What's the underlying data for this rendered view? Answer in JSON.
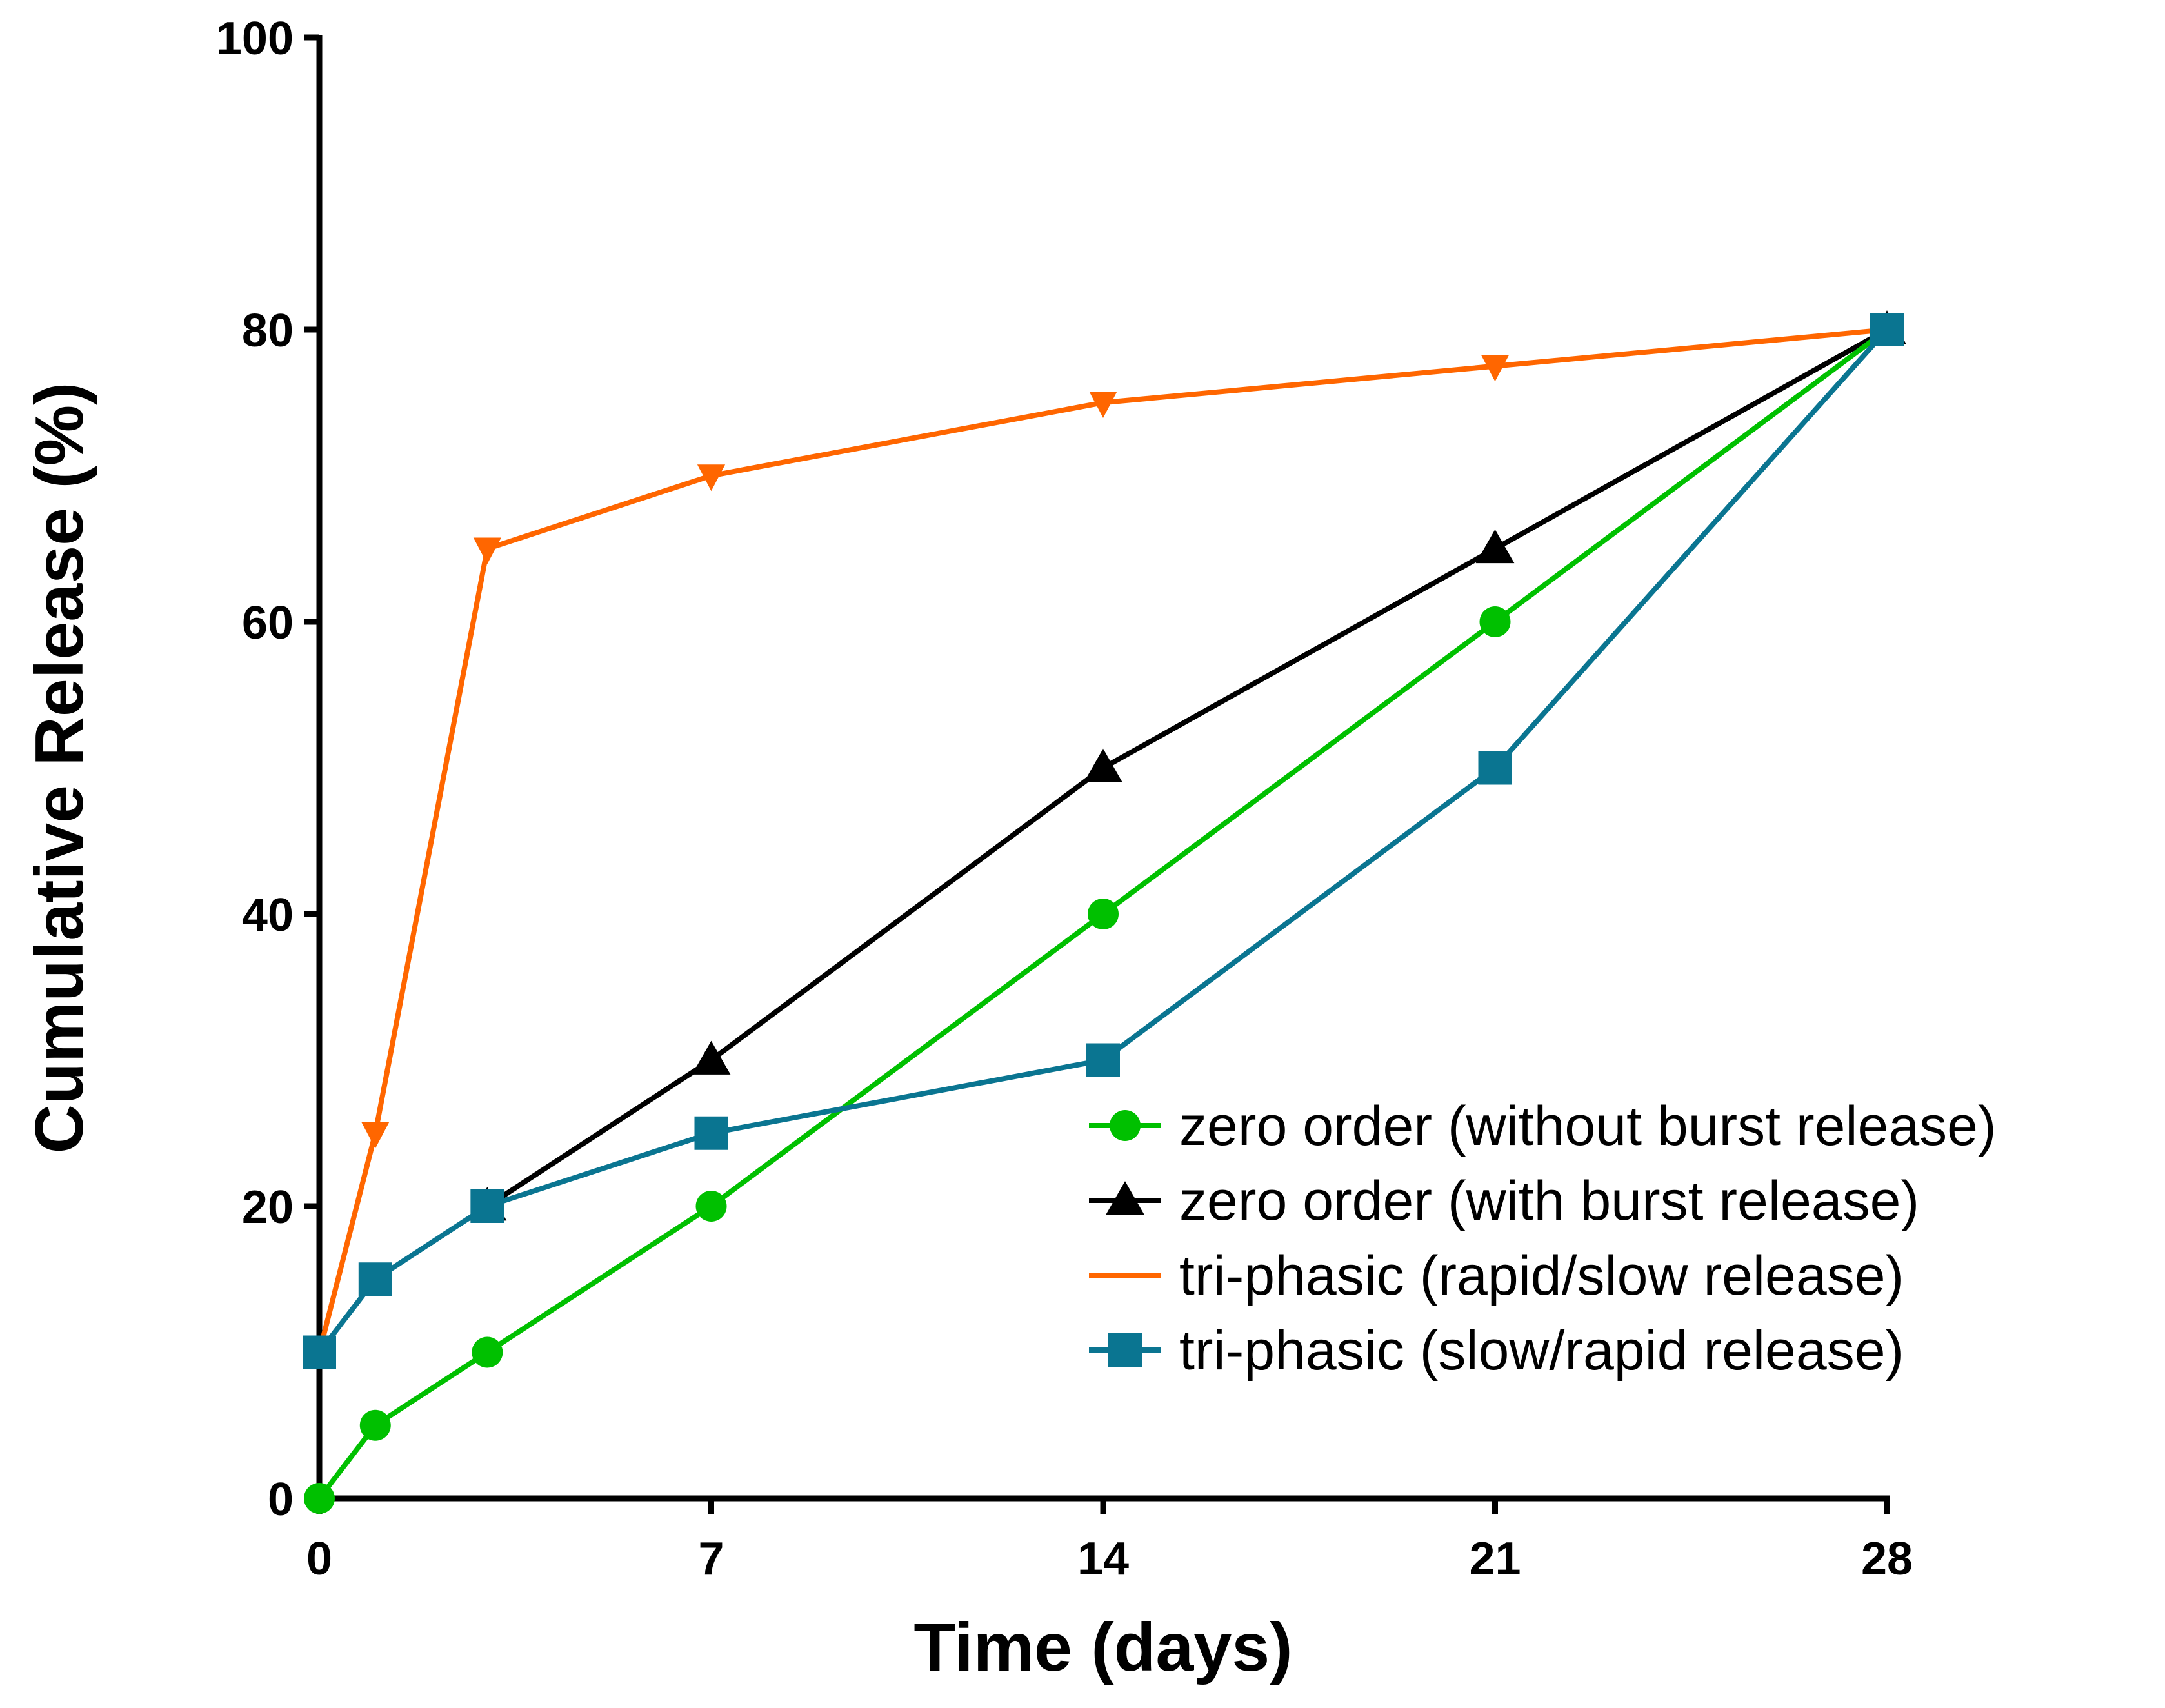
{
  "chart_data": {
    "type": "line",
    "title": "",
    "xlabel": "Time (days)",
    "ylabel": "Cumulative Release (%)",
    "xlim": [
      0,
      28
    ],
    "ylim": [
      0,
      100
    ],
    "xticks": [
      0,
      7,
      14,
      21,
      28
    ],
    "yticks": [
      0,
      20,
      40,
      60,
      80,
      100
    ],
    "xtick_labels": [
      "0",
      "7",
      "14",
      "21",
      "28"
    ],
    "ytick_labels": [
      "0",
      "20",
      "40",
      "60",
      "80",
      "100"
    ],
    "grid": false,
    "legend_position": "bottom-right",
    "series": [
      {
        "name": "zero order (without burst release)",
        "color": "#00c000",
        "marker": "circle",
        "legend_marker": true,
        "x": [
          0,
          1,
          3,
          7,
          14,
          21,
          28
        ],
        "y": [
          0,
          5,
          10,
          20,
          40,
          60,
          80
        ]
      },
      {
        "name": "zero order (with burst release)",
        "color": "#000000",
        "marker": "triangle-up",
        "legend_marker": true,
        "x": [
          3,
          7,
          14,
          21,
          28
        ],
        "y": [
          20,
          30,
          50,
          65,
          80
        ]
      },
      {
        "name": "tri-phasic (rapid/slow release)",
        "color": "#ff6600",
        "marker": "triangle-down",
        "legend_marker": false,
        "x": [
          0,
          1,
          3,
          7,
          14,
          21,
          28
        ],
        "y": [
          10,
          25,
          65,
          70,
          75,
          77.5,
          80
        ]
      },
      {
        "name": "tri-phasic (slow/rapid release)",
        "color": "#0a7591",
        "marker": "square",
        "legend_marker": true,
        "x": [
          0,
          1,
          3,
          7,
          14,
          21,
          28
        ],
        "y": [
          10,
          15,
          20,
          25,
          30,
          50,
          80
        ]
      }
    ]
  }
}
